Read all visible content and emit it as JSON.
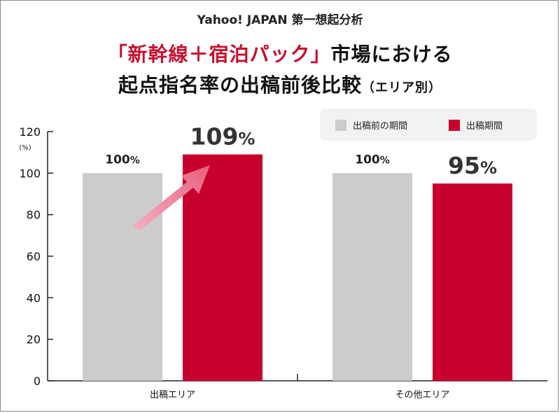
{
  "header": {
    "brand": "Yahoo! JAPAN 第一想起分析",
    "title_accent": "「新幹線＋宿泊パック」",
    "title_rest": "市場における",
    "title_line2": "起点指名率の出稿前後比較",
    "title_suffix": "（エリア別）"
  },
  "legend": {
    "items": [
      {
        "label": "出稿前の期間",
        "color": "#cccccc"
      },
      {
        "label": "出稿期間",
        "color": "#c8002d"
      }
    ]
  },
  "chart_data": {
    "type": "bar",
    "title": "「新幹線＋宿泊パック」市場における起点指名率の出稿前後比較（エリア別）",
    "categories": [
      "出稿エリア",
      "その他エリア"
    ],
    "series": [
      {
        "name": "出稿前の期間",
        "values": [
          100,
          100
        ],
        "color": "#cccccc"
      },
      {
        "name": "出稿期間",
        "values": [
          109,
          95
        ],
        "color": "#c8002d"
      }
    ],
    "data_labels": [
      [
        "100",
        "109"
      ],
      [
        "100",
        "95"
      ]
    ],
    "percent_sign": "%",
    "ylabel": "(%)",
    "ylim": [
      0,
      120
    ],
    "yticks": [
      0,
      20,
      40,
      60,
      80,
      100,
      120
    ],
    "grid": false,
    "legend_position": "top-right",
    "annotation": "pink arrow pointing up from the first bar pair toward the 109% bar"
  }
}
